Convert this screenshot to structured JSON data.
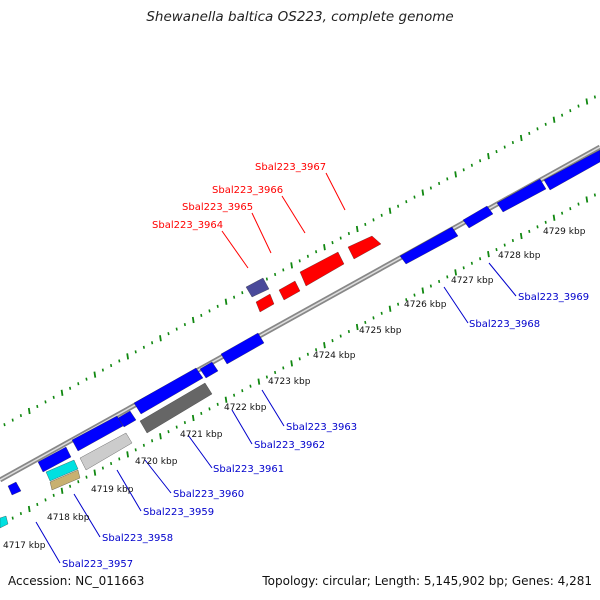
{
  "title": "Shewanella baltica OS223, complete genome",
  "footer": {
    "accession": "Accession: NC_011663",
    "summary": "Topology: circular; Length: 5,145,902 bp; Genes: 4,281"
  },
  "colors": {
    "forward_gene": "#ff0000",
    "reverse_gene": "#0000ff",
    "tick": "#118811",
    "backbone": "#888888",
    "label_forward": "#ff0000",
    "label_reverse": "#0000cc"
  },
  "kbp_labels": [
    "4717 kbp",
    "4718 kbp",
    "4719 kbp",
    "4720 kbp",
    "4721 kbp",
    "4722 kbp",
    "4723 kbp",
    "4724 kbp",
    "4725 kbp",
    "4726 kbp",
    "4727 kbp",
    "4728 kbp",
    "4729 kbp"
  ],
  "forward_gene_labels": [
    "Sbal223_3967",
    "Sbal223_3966",
    "Sbal223_3965",
    "Sbal223_3964"
  ],
  "reverse_gene_labels": [
    "Sbal223_3969",
    "Sbal223_3968",
    "Sbal223_3963",
    "Sbal223_3962",
    "Sbal223_3961",
    "Sbal223_3960",
    "Sbal223_3959",
    "Sbal223_3958",
    "Sbal223_3957"
  ]
}
